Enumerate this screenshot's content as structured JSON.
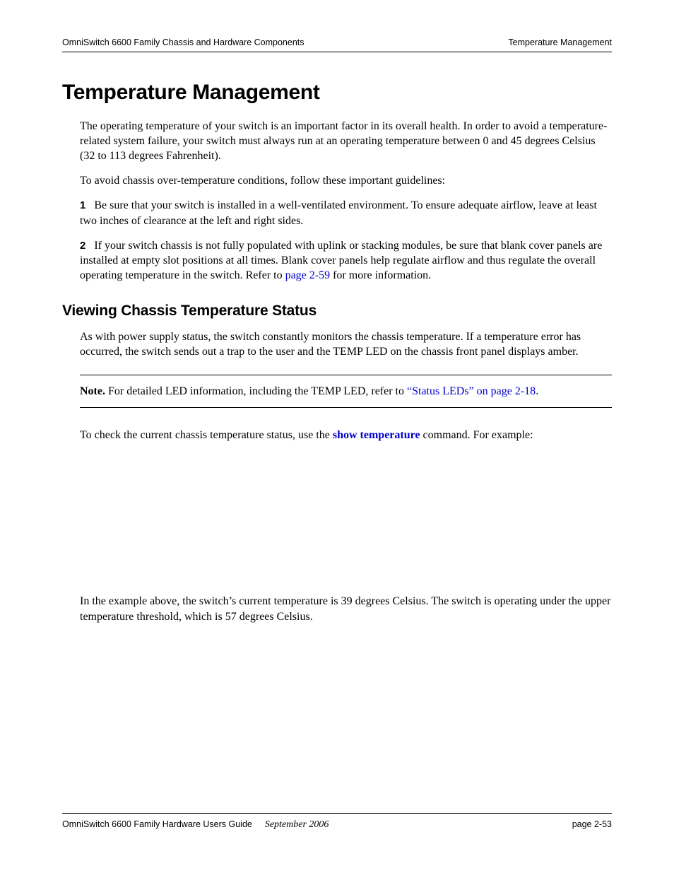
{
  "header": {
    "left": "OmniSwitch 6600 Family Chassis and Hardware Components",
    "right": "Temperature Management"
  },
  "title": "Temperature Management",
  "intro": "The operating temperature of your switch is an important factor in its overall health. In order to avoid a temperature-related system failure, your switch must always run at an operating temperature between 0 and 45 degrees Celsius (32 to 113 degrees Fahrenheit).",
  "lead_in": "To avoid chassis over-temperature conditions, follow these important guidelines:",
  "item1_num": "1",
  "item1_text": "Be sure that your switch is installed in a well-ventilated environment. To ensure adequate airflow, leave at least two inches of clearance at the left and right sides.",
  "item2_num": "2",
  "item2_text_a": "If your switch chassis is not fully populated with uplink or stacking modules, be sure that blank cover panels are installed at empty slot positions at all times. Blank cover panels help regulate airflow and thus regulate the overall operating temperature in the switch. Refer to ",
  "item2_link": "page 2-59",
  "item2_text_b": " for more information.",
  "subheading": "Viewing Chassis Temperature Status",
  "sub_para": "As with power supply status, the switch constantly monitors the chassis temperature. If a temperature error has occurred, the switch sends out a trap to the user and the TEMP LED on the chassis front panel displays amber.",
  "note_bold": "Note.",
  "note_text_a": " For detailed LED information, including the TEMP LED, refer to ",
  "note_link": "“Status LEDs” on page 2-18",
  "note_text_b": ".",
  "check_text_a": "To check the current chassis temperature status, use the ",
  "check_cmd": "show temperature",
  "check_text_b": " command. For example:",
  "closing": "In the example above, the switch’s current temperature is 39 degrees Celsius. The switch is operating under the upper temperature threshold, which is 57 degrees Celsius.",
  "footer": {
    "guide": "OmniSwitch 6600 Family Hardware Users Guide",
    "date": "September 2006",
    "page": "page 2-53"
  },
  "colors": {
    "text": "#000000",
    "link": "#0000cc",
    "background": "#ffffff"
  },
  "typography": {
    "body_font": "Times New Roman",
    "heading_font": "Arial Black / Futura",
    "body_size_pt": 12,
    "h1_size_pt": 22,
    "h2_size_pt": 16
  }
}
